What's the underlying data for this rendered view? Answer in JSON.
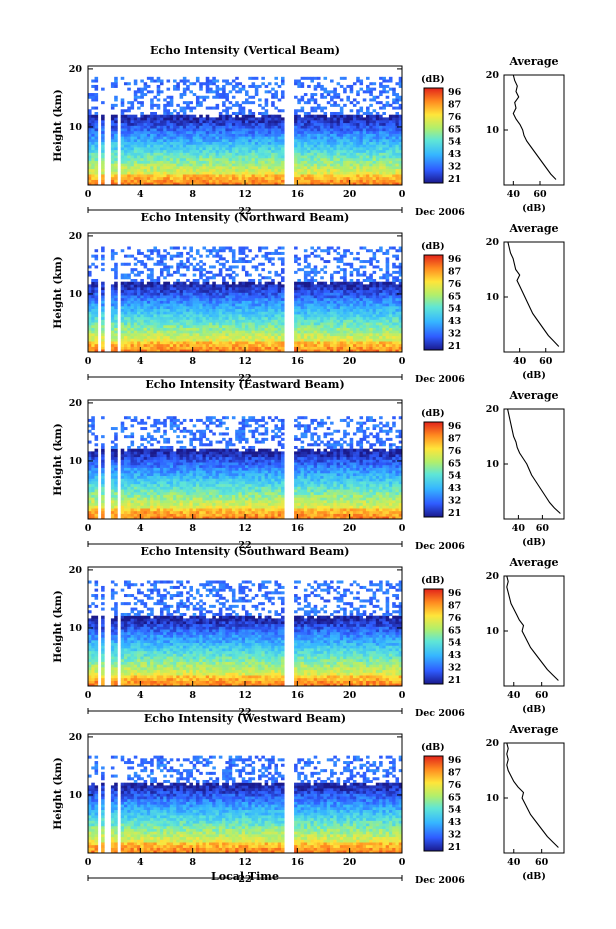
{
  "figure": {
    "date_label": "Dec 2006",
    "xlabel": "Local Time",
    "height_label": "Height (km)",
    "day_label": "22",
    "x_ticks": [
      "0",
      "4",
      "8",
      "12",
      "16",
      "20",
      "0"
    ],
    "y_ticks": [
      "20",
      "10"
    ],
    "colorbar_unit": "(dB)",
    "average_title": "Average",
    "average_unit": "(dB)"
  },
  "chart_data": [
    {
      "type": "heatmap",
      "title": "Echo Intensity (Vertical Beam)",
      "ylabel": "Height (km)",
      "xlabel": "Local Time",
      "x_ticks": [
        "0",
        "4",
        "8",
        "12",
        "16",
        "20",
        "0"
      ],
      "y_ticks": [
        "20",
        "10"
      ],
      "colorbar": {
        "unit": "(dB)",
        "ticks": [
          "96",
          "87",
          "76",
          "65",
          "54",
          "43",
          "32",
          "21"
        ]
      },
      "data_top_km": 18.5,
      "gaps_hours": [
        0.8,
        1.5,
        2.3,
        15.2,
        15.5
      ],
      "average_profile": {
        "title": "Average",
        "xlabel": "(dB)",
        "x_ticks": [
          "40",
          "60"
        ],
        "xlim": [
          33,
          78
        ],
        "y_ticks": [
          "20",
          "10"
        ],
        "points": [
          [
            72,
            1
          ],
          [
            68,
            2
          ],
          [
            65,
            3
          ],
          [
            62,
            4
          ],
          [
            59,
            5
          ],
          [
            56,
            6
          ],
          [
            53,
            7
          ],
          [
            50,
            8
          ],
          [
            48,
            9
          ],
          [
            47,
            10
          ],
          [
            45,
            11
          ],
          [
            42,
            12
          ],
          [
            40,
            13
          ],
          [
            42,
            14
          ],
          [
            41,
            15
          ],
          [
            44,
            16
          ],
          [
            42,
            17
          ],
          [
            43,
            18
          ],
          [
            41,
            19
          ],
          [
            40,
            20
          ]
        ]
      }
    },
    {
      "type": "heatmap",
      "title": "Echo Intensity (Northward Beam)",
      "ylabel": "Height (km)",
      "xlabel": "Local Time",
      "x_ticks": [
        "0",
        "4",
        "8",
        "12",
        "16",
        "20",
        "0"
      ],
      "y_ticks": [
        "20",
        "10"
      ],
      "colorbar": {
        "unit": "(dB)",
        "ticks": [
          "96",
          "87",
          "76",
          "65",
          "54",
          "43",
          "32",
          "21"
        ]
      },
      "data_top_km": 18,
      "gaps_hours": [
        0.8,
        1.5,
        2.3,
        15.2,
        15.5
      ],
      "average_profile": {
        "title": "Average",
        "xlabel": "(dB)",
        "x_ticks": [
          "40",
          "60"
        ],
        "xlim": [
          28,
          74
        ],
        "y_ticks": [
          "20",
          "10"
        ],
        "points": [
          [
            70,
            1
          ],
          [
            66,
            2
          ],
          [
            62,
            3
          ],
          [
            59,
            4
          ],
          [
            56,
            5
          ],
          [
            53,
            6
          ],
          [
            50,
            7
          ],
          [
            48,
            8
          ],
          [
            46,
            9
          ],
          [
            44,
            10
          ],
          [
            42,
            11
          ],
          [
            40,
            12
          ],
          [
            38,
            13
          ],
          [
            40,
            14
          ],
          [
            37,
            15
          ],
          [
            36,
            16
          ],
          [
            35,
            17
          ],
          [
            33,
            18
          ],
          [
            32,
            19
          ],
          [
            31,
            20
          ]
        ]
      }
    },
    {
      "type": "heatmap",
      "title": "Echo Intensity (Eastward Beam)",
      "ylabel": "Height (km)",
      "xlabel": "Local Time",
      "x_ticks": [
        "0",
        "4",
        "8",
        "12",
        "16",
        "20",
        "0"
      ],
      "y_ticks": [
        "20",
        "10"
      ],
      "colorbar": {
        "unit": "(dB)",
        "ticks": [
          "96",
          "87",
          "76",
          "65",
          "54",
          "43",
          "32",
          "21"
        ]
      },
      "data_top_km": 17.5,
      "gaps_hours": [
        0.8,
        1.5,
        2.3,
        15.2,
        15.5
      ],
      "average_profile": {
        "title": "Average",
        "xlabel": "(dB)",
        "x_ticks": [
          "40",
          "60"
        ],
        "xlim": [
          28,
          78
        ],
        "y_ticks": [
          "20",
          "10"
        ],
        "points": [
          [
            75,
            1
          ],
          [
            70,
            2
          ],
          [
            66,
            3
          ],
          [
            63,
            4
          ],
          [
            60,
            5
          ],
          [
            57,
            6
          ],
          [
            54,
            7
          ],
          [
            51,
            8
          ],
          [
            49,
            9
          ],
          [
            47,
            10
          ],
          [
            44,
            11
          ],
          [
            41,
            12
          ],
          [
            39,
            13
          ],
          [
            38,
            14
          ],
          [
            36,
            15
          ],
          [
            35,
            16
          ],
          [
            34,
            17
          ],
          [
            33,
            18
          ],
          [
            32,
            19
          ],
          [
            31,
            20
          ]
        ]
      }
    },
    {
      "type": "heatmap",
      "title": "Echo Intensity (Southward Beam)",
      "ylabel": "Height (km)",
      "xlabel": "Local Time",
      "x_ticks": [
        "0",
        "4",
        "8",
        "12",
        "16",
        "20",
        "0"
      ],
      "y_ticks": [
        "20",
        "10"
      ],
      "colorbar": {
        "unit": "(dB)",
        "ticks": [
          "96",
          "87",
          "76",
          "65",
          "54",
          "43",
          "32",
          "21"
        ]
      },
      "data_top_km": 18,
      "gaps_hours": [
        0.8,
        1.5,
        2.3,
        15.2,
        15.5
      ],
      "average_profile": {
        "title": "Average",
        "xlabel": "(dB)",
        "x_ticks": [
          "40",
          "60"
        ],
        "xlim": [
          33,
          76
        ],
        "y_ticks": [
          "20",
          "10"
        ],
        "points": [
          [
            72,
            1
          ],
          [
            68,
            2
          ],
          [
            64,
            3
          ],
          [
            61,
            4
          ],
          [
            58,
            5
          ],
          [
            55,
            6
          ],
          [
            52,
            7
          ],
          [
            50,
            8
          ],
          [
            48,
            9
          ],
          [
            46,
            10
          ],
          [
            47,
            11
          ],
          [
            44,
            12
          ],
          [
            42,
            13
          ],
          [
            40,
            14
          ],
          [
            38,
            15
          ],
          [
            37,
            16
          ],
          [
            36,
            17
          ],
          [
            35,
            18
          ],
          [
            36,
            19
          ],
          [
            35,
            20
          ]
        ]
      }
    },
    {
      "type": "heatmap",
      "title": "Echo Intensity (Westward Beam)",
      "ylabel": "Height (km)",
      "xlabel": "Local Time",
      "x_ticks": [
        "0",
        "4",
        "8",
        "12",
        "16",
        "20",
        "0"
      ],
      "y_ticks": [
        "20",
        "10"
      ],
      "colorbar": {
        "unit": "(dB)",
        "ticks": [
          "96",
          "87",
          "76",
          "65",
          "54",
          "43",
          "32",
          "21"
        ]
      },
      "data_top_km": 17,
      "gaps_hours": [
        0.8,
        1.5,
        2.3,
        15.2,
        15.5
      ],
      "average_profile": {
        "title": "Average",
        "xlabel": "(dB)",
        "x_ticks": [
          "40",
          "60"
        ],
        "xlim": [
          33,
          76
        ],
        "y_ticks": [
          "20",
          "10"
        ],
        "points": [
          [
            72,
            1
          ],
          [
            68,
            2
          ],
          [
            64,
            3
          ],
          [
            61,
            4
          ],
          [
            58,
            5
          ],
          [
            55,
            6
          ],
          [
            52,
            7
          ],
          [
            50,
            8
          ],
          [
            48,
            9
          ],
          [
            46,
            10
          ],
          [
            47,
            11
          ],
          [
            43,
            12
          ],
          [
            40,
            13
          ],
          [
            38,
            14
          ],
          [
            36,
            15
          ],
          [
            35,
            16
          ],
          [
            36,
            17
          ],
          [
            35,
            18
          ],
          [
            36,
            19
          ],
          [
            35,
            20
          ]
        ]
      }
    }
  ]
}
